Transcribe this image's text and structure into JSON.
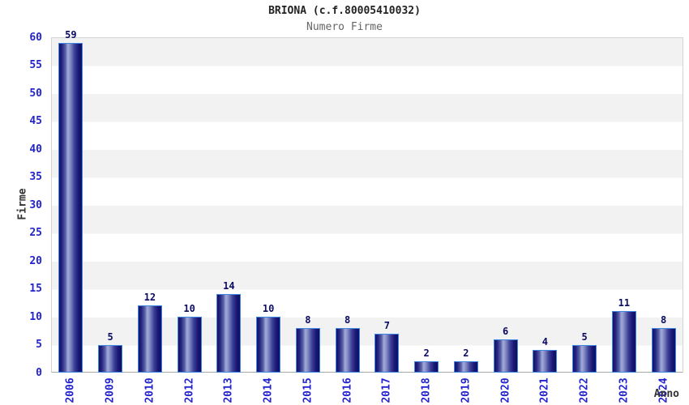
{
  "header": {
    "title": "BRIONA (c.f.80005410032)",
    "subtitle": "Numero Firme"
  },
  "chart_data": {
    "type": "bar",
    "title": "BRIONA (c.f.80005410032)",
    "subtitle": "Numero Firme",
    "xlabel": "Anno",
    "ylabel": "Firme",
    "categories": [
      "2006",
      "2009",
      "2010",
      "2012",
      "2013",
      "2014",
      "2015",
      "2016",
      "2017",
      "2018",
      "2019",
      "2020",
      "2021",
      "2022",
      "2023",
      "2024"
    ],
    "values": [
      59,
      5,
      12,
      10,
      14,
      10,
      8,
      8,
      7,
      2,
      2,
      6,
      4,
      5,
      11,
      8
    ],
    "ylim": [
      0,
      60
    ],
    "ytick_step": 5,
    "yticks": [
      0,
      5,
      10,
      15,
      20,
      25,
      30,
      35,
      40,
      45,
      50,
      55,
      60
    ],
    "grid": "alternating horizontal bands, gray band at top interval",
    "legend": "none",
    "bar_labels_shown": true
  },
  "colors": {
    "tick_label_blue": "#2323cf",
    "value_label_navy": "#0b0b63",
    "axis_title_gray": "#333333",
    "title_color": "#222222",
    "subtitle_color": "#666666",
    "band_gray": "#f2f2f2",
    "band_white": "#ffffff",
    "plot_border": "#d4d4d4",
    "bar_border_blue": "#3f87e0",
    "bar_dark_navy": "#12126e",
    "bar_highlight": "#a2abd8"
  }
}
